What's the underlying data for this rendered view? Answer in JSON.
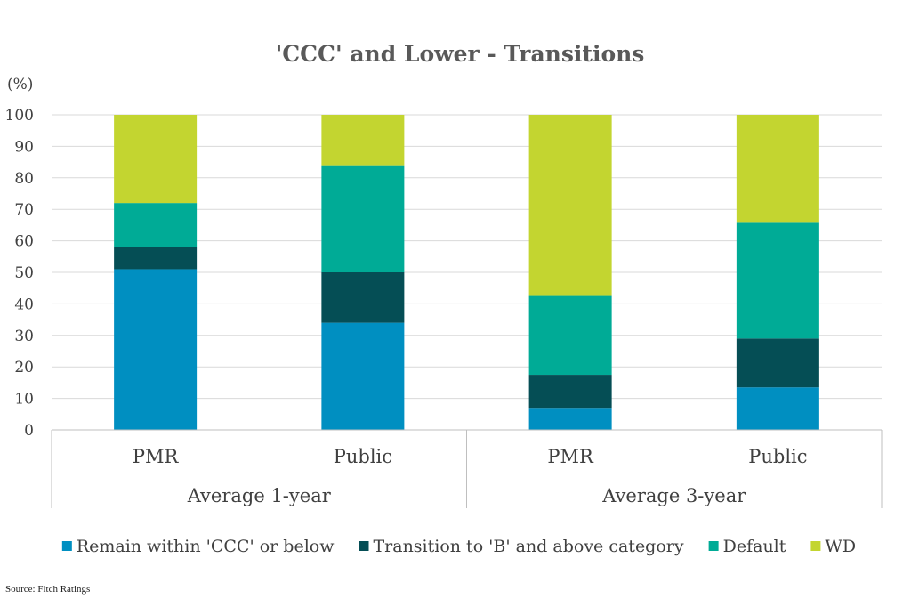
{
  "chart_data": {
    "type": "bar",
    "stacked": true,
    "title": "'CCC' and Lower - Transitions",
    "ylabel": "(%)",
    "ylim": [
      0,
      100
    ],
    "yticks": [
      0,
      10,
      20,
      30,
      40,
      50,
      60,
      70,
      80,
      90,
      100
    ],
    "categories": [
      "PMR",
      "Public",
      "PMR",
      "Public"
    ],
    "groups": [
      {
        "label": "Average 1-year",
        "categories": [
          "PMR",
          "Public"
        ]
      },
      {
        "label": "Average 3-year",
        "categories": [
          "PMR",
          "Public"
        ]
      }
    ],
    "series": [
      {
        "name": "Remain within 'CCC' or below",
        "color": "#008fc1",
        "values": [
          51,
          34,
          7,
          13.5
        ]
      },
      {
        "name": "Transition to 'B' and above category",
        "color": "#054e55",
        "values": [
          7,
          16,
          10.5,
          15.5
        ]
      },
      {
        "name": "Default",
        "color": "#00ab96",
        "values": [
          14,
          34,
          25,
          37
        ]
      },
      {
        "name": "WD",
        "color": "#c3d530",
        "values": [
          28,
          16,
          57.5,
          34
        ]
      }
    ],
    "grid": true,
    "legend_position": "bottom"
  },
  "source": "Source: Fitch Ratings"
}
